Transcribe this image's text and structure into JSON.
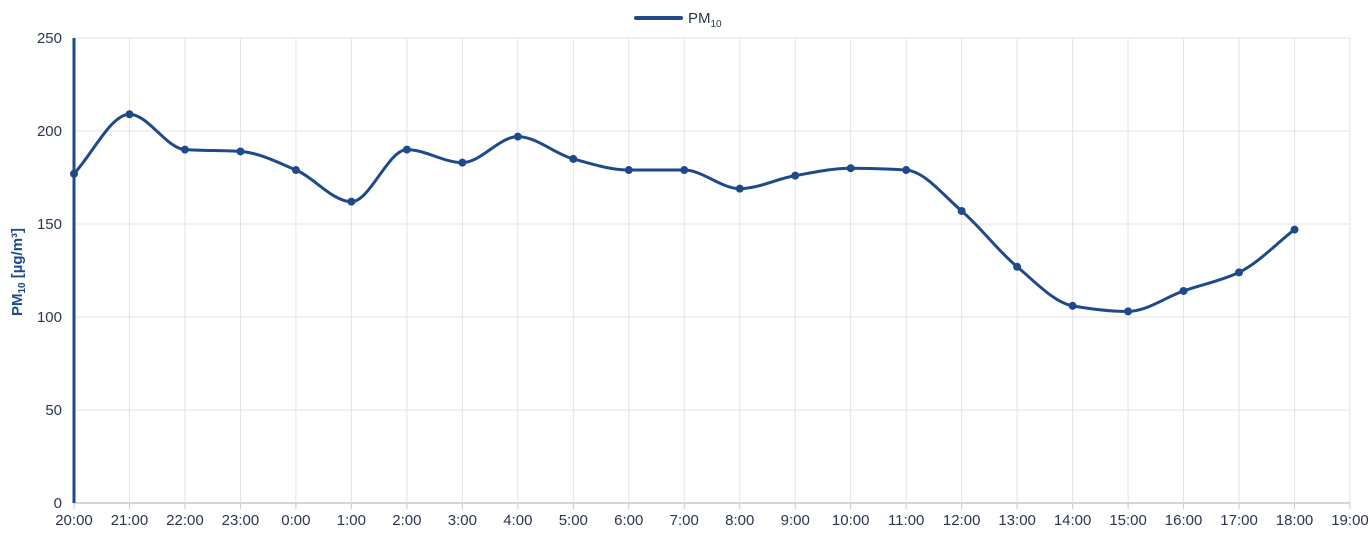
{
  "chart_data": {
    "type": "line",
    "x": [
      "20:00",
      "21:00",
      "22:00",
      "23:00",
      "0:00",
      "1:00",
      "2:00",
      "3:00",
      "4:00",
      "5:00",
      "6:00",
      "7:00",
      "8:00",
      "9:00",
      "10:00",
      "11:00",
      "12:00",
      "13:00",
      "14:00",
      "15:00",
      "16:00",
      "17:00",
      "18:00",
      "19:00"
    ],
    "series": [
      {
        "name_main": "PM",
        "name_sub": "10",
        "values": [
          177,
          209,
          190,
          189,
          179,
          162,
          190,
          183,
          197,
          185,
          179,
          179,
          169,
          176,
          180,
          179,
          157,
          127,
          106,
          103,
          114,
          124,
          147,
          null
        ]
      }
    ],
    "ylabel_main": "PM",
    "ylabel_sub": "10",
    "ylabel_unit": " [µg/m³]",
    "ylim": [
      0,
      250
    ],
    "yticks": [
      0,
      50,
      100,
      150,
      200,
      250
    ],
    "grid": true,
    "legend_position": "top-center",
    "colors": {
      "series": "#1f4a8a",
      "grid": "#e3e3e3",
      "text": "#2a3550"
    }
  }
}
